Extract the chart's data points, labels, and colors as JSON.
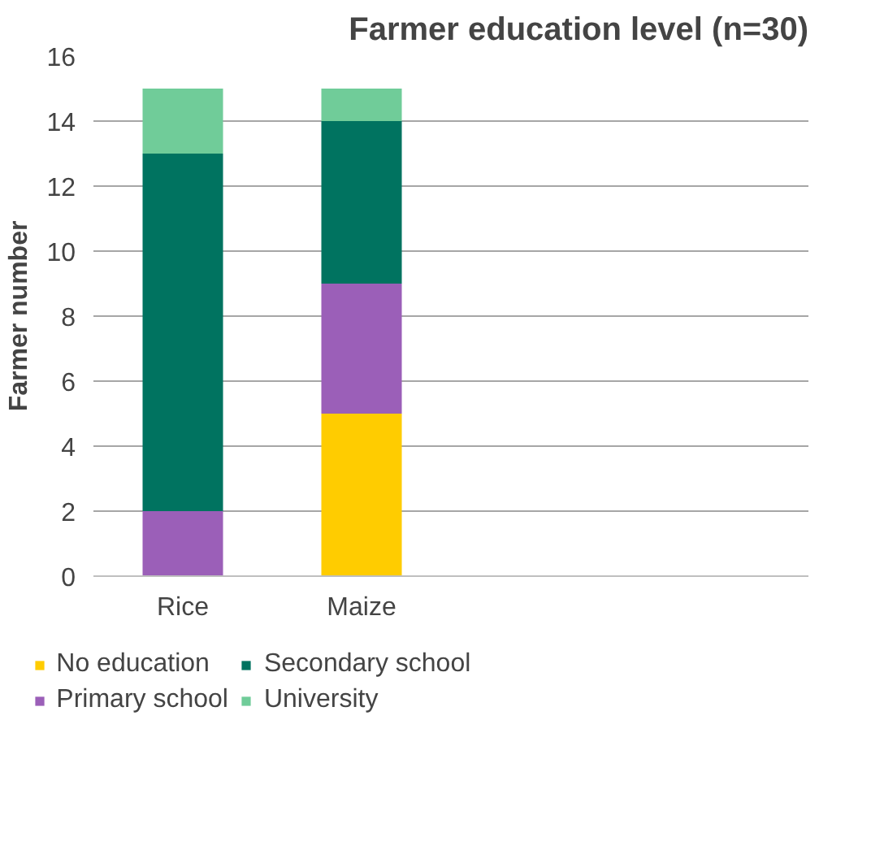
{
  "chart_data": {
    "type": "bar",
    "title": "Farmer education level (n=30)",
    "ylabel": "Farmer number",
    "categories": [
      "Rice",
      "Maize",
      null,
      null
    ],
    "stacked": true,
    "series": [
      {
        "name": "No education",
        "color": "#ffcc00",
        "values": [
          0,
          5,
          null,
          null
        ]
      },
      {
        "name": "Primary school",
        "color": "#9b5fb8",
        "values": [
          2,
          4,
          null,
          null
        ]
      },
      {
        "name": "Secondary school",
        "color": "#007360",
        "values": [
          11,
          5,
          null,
          null
        ]
      },
      {
        "name": "University",
        "color": "#70cc99",
        "values": [
          2,
          1,
          null,
          null
        ]
      }
    ],
    "ylim": [
      0,
      16
    ],
    "yticks": [
      0,
      2,
      4,
      6,
      8,
      10,
      12,
      14,
      16
    ],
    "grid": "y",
    "legend": "bottom"
  }
}
